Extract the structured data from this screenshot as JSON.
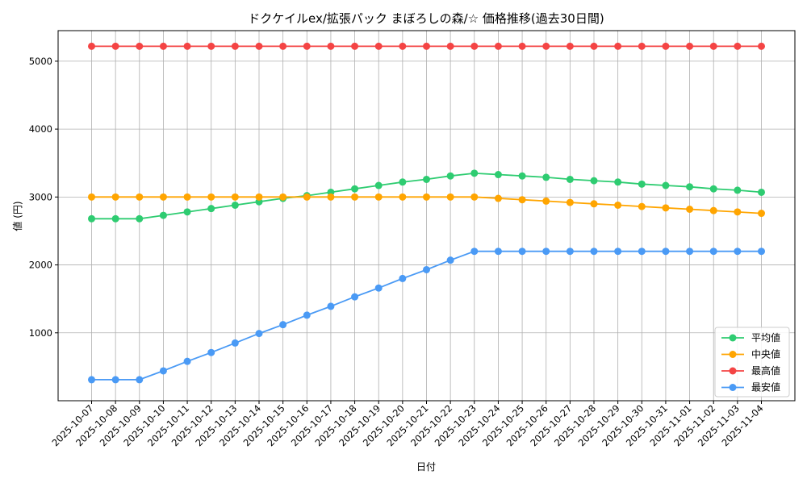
{
  "chart_data": {
    "type": "line",
    "title": "ドクケイルex/拡張パック まぼろしの森/☆ 価格推移(過去30日間)",
    "xlabel": "日付",
    "ylabel": "値 (円)",
    "ylim": [
      0,
      5450
    ],
    "yticks": [
      1000,
      2000,
      3000,
      4000,
      5000
    ],
    "grid": true,
    "legend_position": "lower-right",
    "categories": [
      "2025-10-07",
      "2025-10-08",
      "2025-10-09",
      "2025-10-10",
      "2025-10-11",
      "2025-10-12",
      "2025-10-13",
      "2025-10-14",
      "2025-10-15",
      "2025-10-16",
      "2025-10-17",
      "2025-10-18",
      "2025-10-19",
      "2025-10-20",
      "2025-10-21",
      "2025-10-22",
      "2025-10-23",
      "2025-10-24",
      "2025-10-25",
      "2025-10-26",
      "2025-10-27",
      "2025-10-28",
      "2025-10-29",
      "2025-10-30",
      "2025-10-31",
      "2025-11-01",
      "2025-11-02",
      "2025-11-03",
      "2025-11-04"
    ],
    "series": [
      {
        "name": "平均値",
        "color": "#2ecc71",
        "values": [
          2680,
          2680,
          2680,
          2730,
          2780,
          2830,
          2880,
          2930,
          2980,
          3020,
          3070,
          3120,
          3170,
          3220,
          3260,
          3310,
          3350,
          3330,
          3310,
          3290,
          3260,
          3240,
          3220,
          3190,
          3170,
          3150,
          3120,
          3100,
          3070
        ]
      },
      {
        "name": "中央値",
        "color": "#ffa500",
        "values": [
          3000,
          3000,
          3000,
          3000,
          3000,
          3000,
          3000,
          3000,
          3000,
          3000,
          3000,
          3000,
          3000,
          3000,
          3000,
          3000,
          3000,
          2980,
          2960,
          2940,
          2920,
          2900,
          2880,
          2860,
          2840,
          2820,
          2800,
          2780,
          2760
        ]
      },
      {
        "name": "最高値",
        "color": "#f44444",
        "values": [
          5220,
          5220,
          5220,
          5220,
          5220,
          5220,
          5220,
          5220,
          5220,
          5220,
          5220,
          5220,
          5220,
          5220,
          5220,
          5220,
          5220,
          5220,
          5220,
          5220,
          5220,
          5220,
          5220,
          5220,
          5220,
          5220,
          5220,
          5220,
          5220
        ]
      },
      {
        "name": "最安値",
        "color": "#4a9af5",
        "values": [
          310,
          310,
          310,
          440,
          580,
          710,
          850,
          990,
          1120,
          1260,
          1390,
          1530,
          1660,
          1800,
          1930,
          2070,
          2200,
          2200,
          2200,
          2200,
          2200,
          2200,
          2200,
          2200,
          2200,
          2200,
          2200,
          2200,
          2200
        ]
      }
    ]
  }
}
